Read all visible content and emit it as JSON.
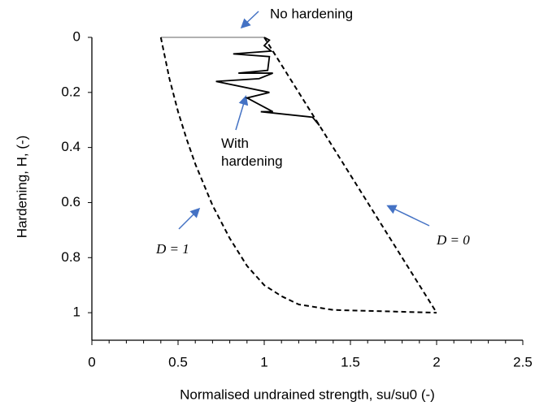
{
  "chart_data": {
    "type": "line",
    "xlabel": "Normalised undrained strength, su/su0 (-)",
    "ylabel": "Hardening, H, (-)",
    "xlim": [
      0,
      2.5
    ],
    "xticks": [
      0,
      0.5,
      1,
      1.5,
      2,
      2.5
    ],
    "x_minor_per_major": 5,
    "ylim": [
      0,
      1.1
    ],
    "yticks": [
      0,
      0.2,
      0.4,
      0.6,
      0.8,
      1
    ],
    "y_inverted": true,
    "grid": false,
    "series": [
      {
        "name": "No hardening",
        "color": "#a6a6a6",
        "dash": false,
        "x": [
          0.4,
          1.0
        ],
        "values": [
          0,
          0
        ]
      },
      {
        "name": "D = 1",
        "color": "#000000",
        "dash": true,
        "x": [
          0.4,
          0.45,
          0.5,
          0.55,
          0.6,
          0.7,
          0.8,
          0.9,
          1.0,
          1.1,
          1.2,
          1.4,
          2.0
        ],
        "values": [
          0,
          0.15,
          0.27,
          0.37,
          0.46,
          0.61,
          0.73,
          0.83,
          0.9,
          0.94,
          0.97,
          0.99,
          1.0
        ]
      },
      {
        "name": "D = 0",
        "color": "#000000",
        "dash": true,
        "x": [
          1.0,
          2.0
        ],
        "values": [
          0,
          1.0
        ]
      },
      {
        "name": "With hardening",
        "color": "#000000",
        "dash": false,
        "x": [
          1.0,
          1.03,
          1.0,
          1.04,
          0.82,
          1.03,
          1.02,
          0.85,
          1.05,
          0.97,
          0.72,
          1.03,
          0.9,
          1.05,
          0.98,
          1.28,
          1.32
        ],
        "values": [
          0,
          0.01,
          0.03,
          0.05,
          0.06,
          0.07,
          0.12,
          0.13,
          0.13,
          0.15,
          0.16,
          0.2,
          0.22,
          0.27,
          0.27,
          0.29,
          0.32
        ]
      }
    ]
  }
}
